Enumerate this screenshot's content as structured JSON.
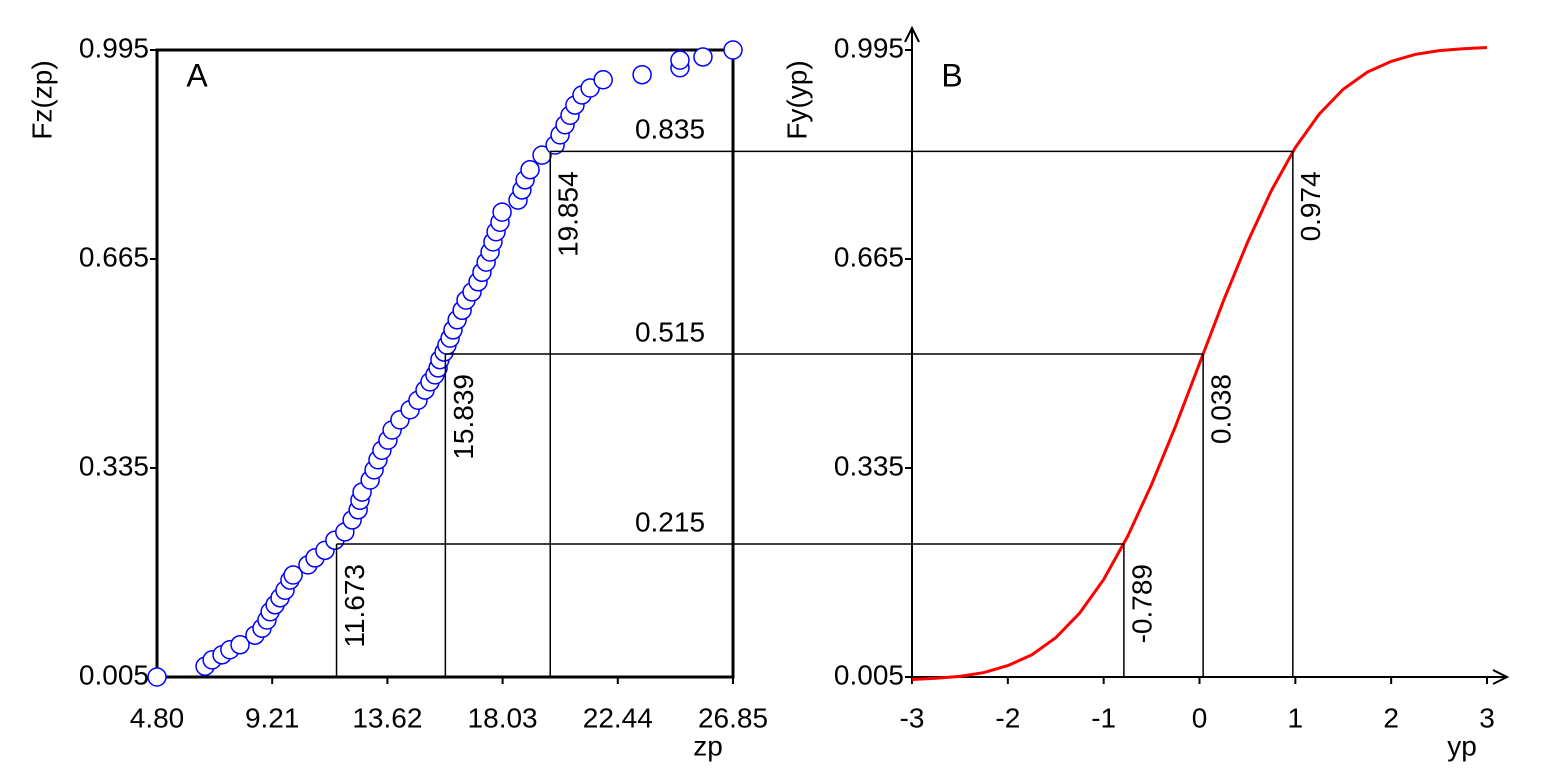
{
  "chart_data": [
    {
      "type": "scatter",
      "panel_label": "A",
      "x_label": "zp",
      "y_label": "Fz(zp)",
      "color": "#0000ff",
      "frame": true,
      "x": [
        4.8,
        6.64,
        6.91,
        7.29,
        7.59,
        7.98,
        8.55,
        8.82,
        9.01,
        9.13,
        9.32,
        9.51,
        9.7,
        9.89,
        10.01,
        10.58,
        10.85,
        11.23,
        11.61,
        11.99,
        12.27,
        12.5,
        12.57,
        12.65,
        12.96,
        13.11,
        13.26,
        13.41,
        13.64,
        13.8,
        14.1,
        14.49,
        14.79,
        15.06,
        15.25,
        15.44,
        15.56,
        15.63,
        15.79,
        15.9,
        16.02,
        16.13,
        16.29,
        16.48,
        16.63,
        16.86,
        17.09,
        17.24,
        17.4,
        17.55,
        17.66,
        17.78,
        17.93,
        18.01,
        18.62,
        18.77,
        18.89,
        19.08,
        19.54,
        20.04,
        20.23,
        20.42,
        20.61,
        20.8,
        21.07,
        21.38,
        21.88,
        23.37,
        24.82,
        24.82,
        25.7,
        26.85
      ],
      "values": [
        0.005,
        0.022,
        0.032,
        0.04,
        0.048,
        0.056,
        0.071,
        0.082,
        0.095,
        0.108,
        0.119,
        0.13,
        0.142,
        0.158,
        0.166,
        0.182,
        0.193,
        0.205,
        0.221,
        0.234,
        0.253,
        0.269,
        0.284,
        0.297,
        0.316,
        0.332,
        0.348,
        0.363,
        0.379,
        0.395,
        0.411,
        0.427,
        0.442,
        0.458,
        0.471,
        0.482,
        0.493,
        0.506,
        0.518,
        0.529,
        0.54,
        0.553,
        0.569,
        0.584,
        0.6,
        0.613,
        0.629,
        0.644,
        0.66,
        0.676,
        0.692,
        0.708,
        0.723,
        0.739,
        0.758,
        0.774,
        0.79,
        0.806,
        0.829,
        0.845,
        0.861,
        0.877,
        0.892,
        0.908,
        0.924,
        0.935,
        0.948,
        0.956,
        0.967,
        0.979,
        0.984,
        0.995
      ],
      "xlim": [
        4.8,
        26.85
      ],
      "ylim": [
        0.005,
        0.995
      ],
      "xticks": [
        {
          "value": 4.8,
          "label": "4.80"
        },
        9.21,
        13.62,
        18.03,
        22.44,
        26.85
      ],
      "yticks": [
        0.005,
        0.335,
        0.665,
        0.995
      ],
      "guides": [
        {
          "x": 11.673,
          "y": 0.215
        },
        {
          "x": 15.839,
          "y": 0.515
        },
        {
          "x": 19.854,
          "y": 0.835
        }
      ]
    },
    {
      "type": "line",
      "panel_label": "B",
      "x_label": "yp",
      "y_label": "Fy(yp)",
      "color": "#ff0000",
      "arrows": true,
      "x": [
        -3,
        -2.75,
        -2.5,
        -2.25,
        -2,
        -1.75,
        -1.5,
        -1.25,
        -1,
        -0.75,
        -0.5,
        -0.25,
        0,
        0.25,
        0.5,
        0.75,
        1,
        1.25,
        1.5,
        1.75,
        2,
        2.25,
        2.5,
        2.75,
        3
      ],
      "values": [
        0.001,
        0.003,
        0.006,
        0.012,
        0.023,
        0.04,
        0.067,
        0.106,
        0.159,
        0.227,
        0.309,
        0.401,
        0.5,
        0.599,
        0.691,
        0.773,
        0.841,
        0.894,
        0.933,
        0.96,
        0.977,
        0.988,
        0.994,
        0.997,
        0.999
      ],
      "xlim": [
        -3,
        3
      ],
      "ylim": [
        0.005,
        0.995
      ],
      "xticks": [
        -3,
        -2,
        -1,
        0,
        1,
        2,
        3
      ],
      "yticks": [
        0.005,
        0.335,
        0.665,
        0.995
      ],
      "guides": [
        {
          "x": -0.789,
          "y": 0.215
        },
        {
          "x": 0.038,
          "y": 0.515
        },
        {
          "x": 0.974,
          "y": 0.835
        }
      ]
    }
  ]
}
